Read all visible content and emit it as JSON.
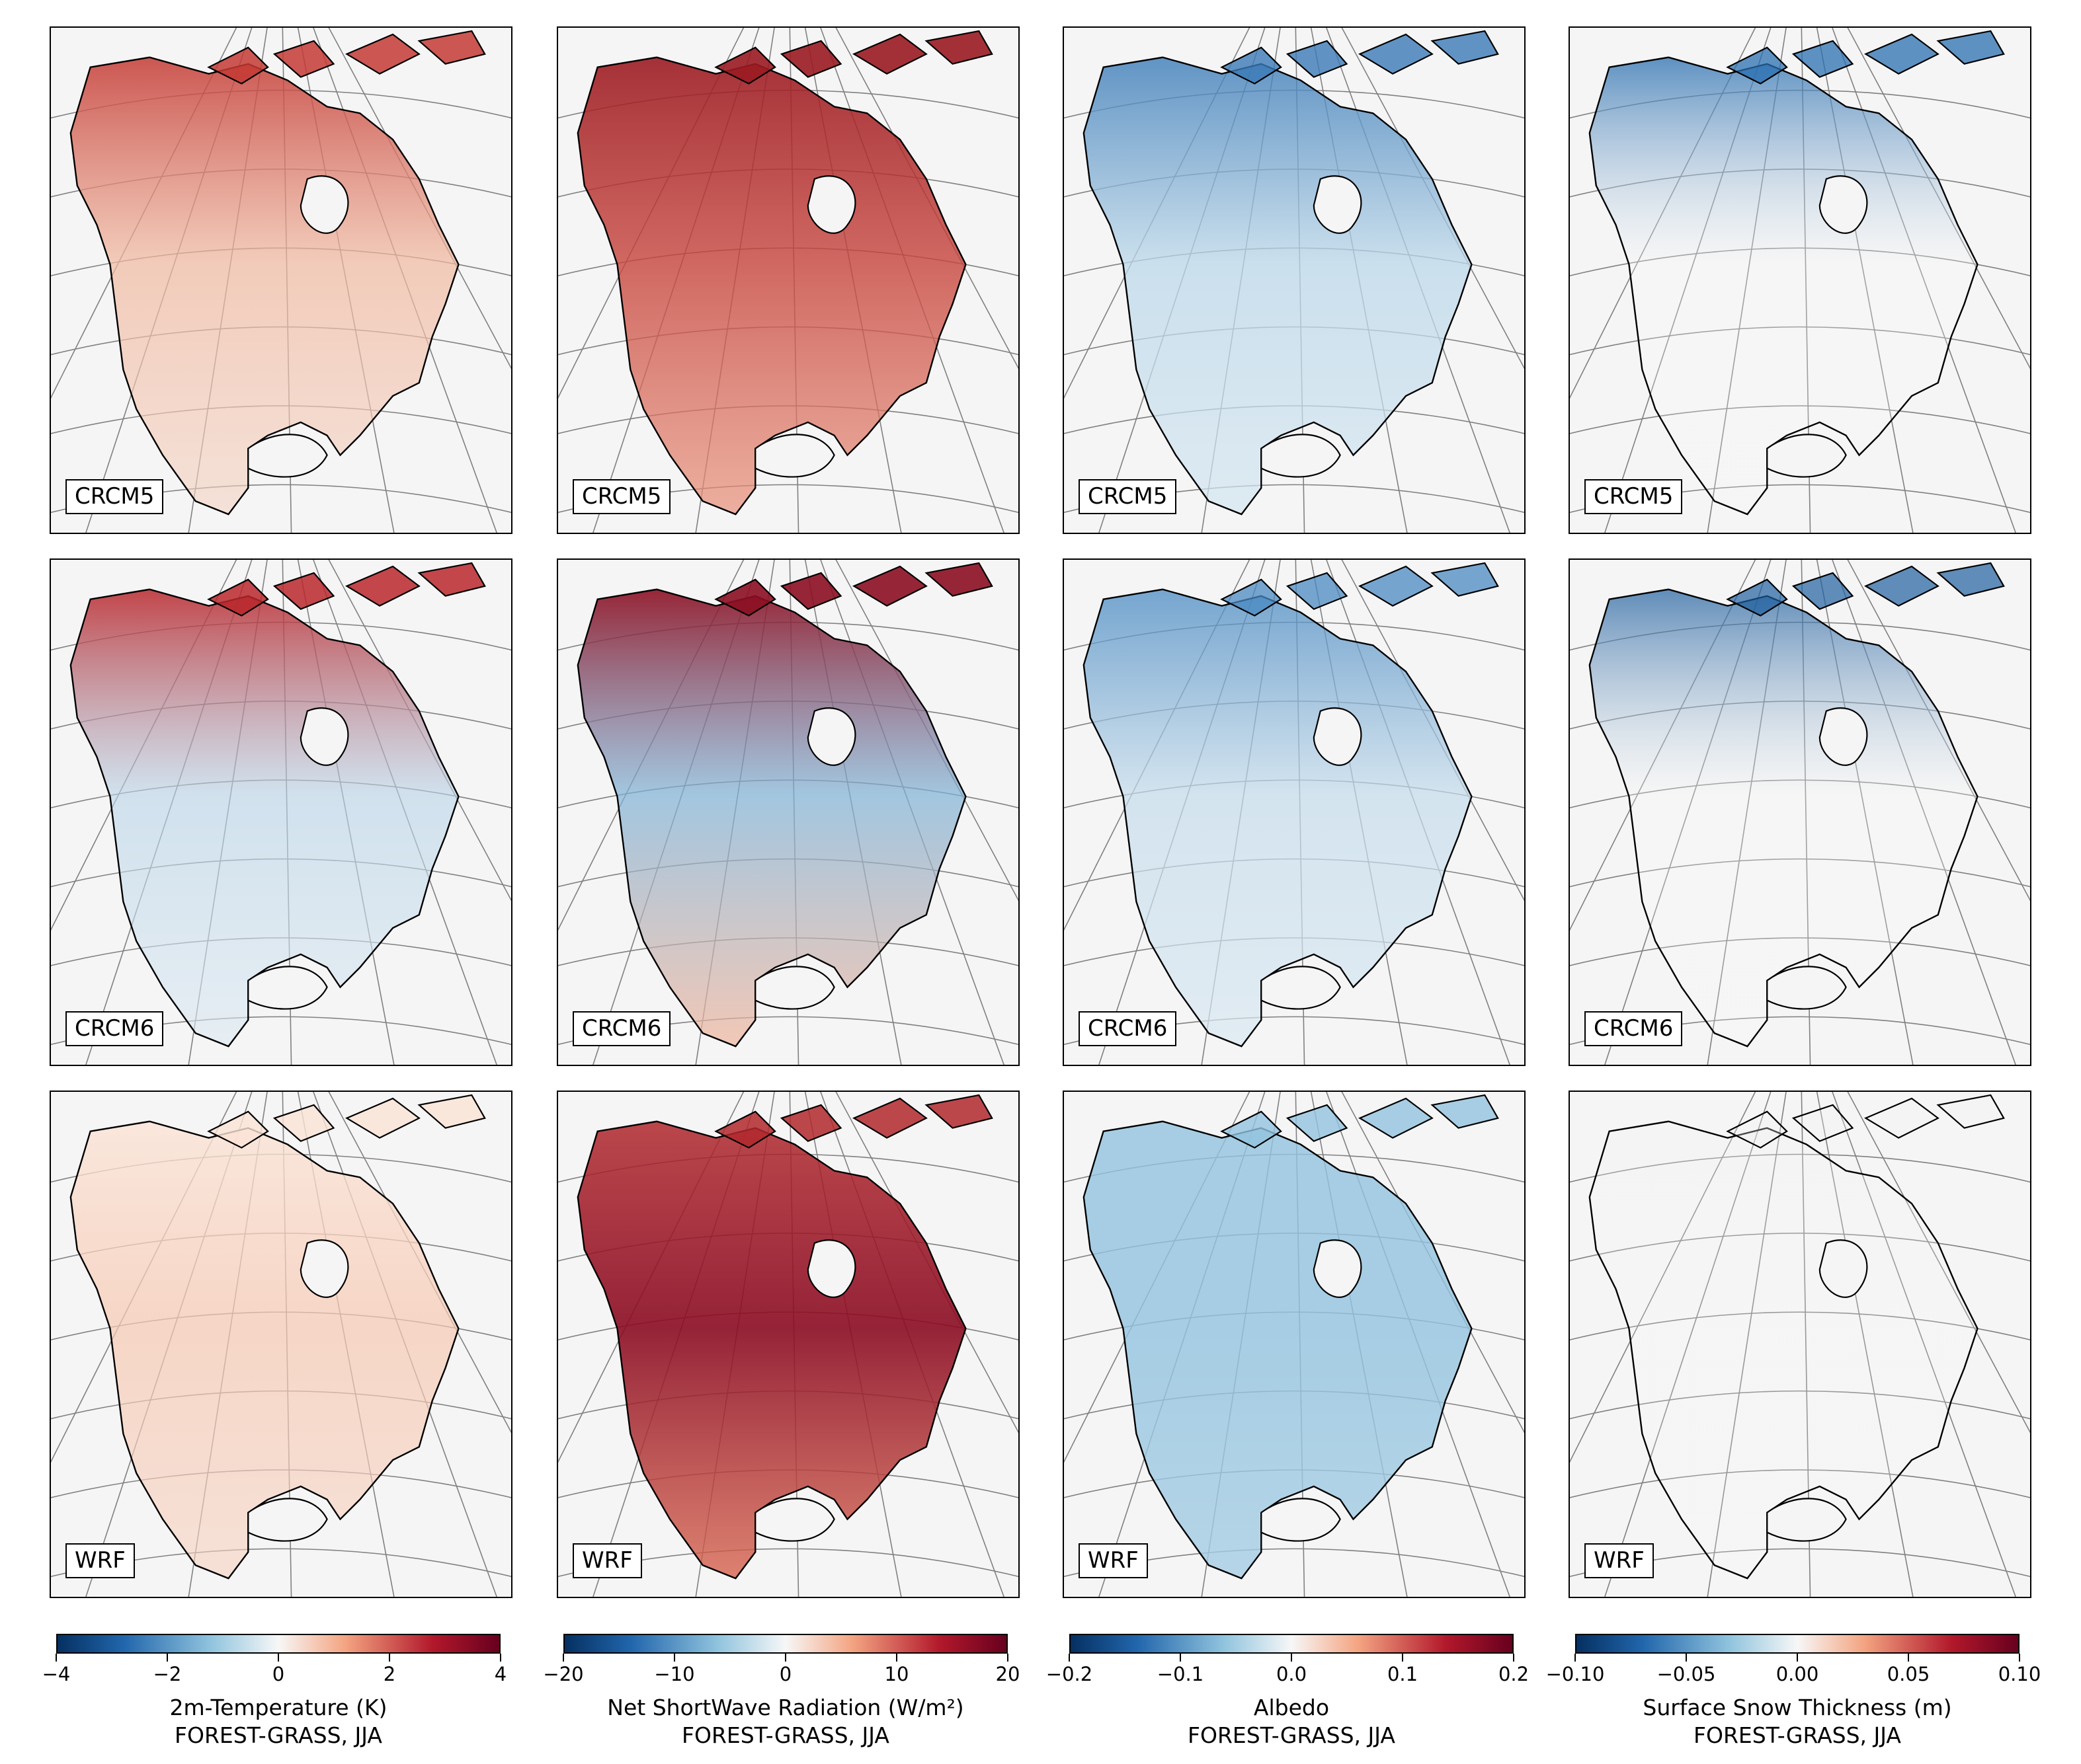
{
  "variables": [
    {
      "title": "2m-Temperature (K)",
      "subtitle": "FOREST-GRASS, JJA",
      "ticks": [
        "−4",
        "−2",
        "0",
        "2",
        "4"
      ],
      "tick_values": [
        -4,
        -2,
        0,
        2,
        4
      ],
      "range": [
        -4,
        4
      ]
    },
    {
      "title": "Net ShortWave Radiation (W/m²)",
      "subtitle": "FOREST-GRASS, JJA",
      "ticks": [
        "−20",
        "−10",
        "0",
        "10",
        "20"
      ],
      "tick_values": [
        -20,
        -10,
        0,
        10,
        20
      ],
      "range": [
        -20,
        20
      ]
    },
    {
      "title": "Albedo",
      "subtitle": "FOREST-GRASS, JJA",
      "ticks": [
        "−0.2",
        "−0.1",
        "0.0",
        "0.1",
        "0.2"
      ],
      "tick_values": [
        -0.2,
        -0.1,
        0.0,
        0.1,
        0.2
      ],
      "range": [
        -0.2,
        0.2
      ]
    },
    {
      "title": "Surface Snow Thickness (m)",
      "subtitle": "FOREST-GRASS, JJA",
      "ticks": [
        "−0.10",
        "−0.05",
        "0.00",
        "0.05",
        "0.10"
      ],
      "tick_values": [
        -0.1,
        -0.05,
        0.0,
        0.05,
        0.1
      ],
      "range": [
        -0.1,
        0.1
      ]
    }
  ],
  "models": [
    "CRCM5",
    "CRCM6",
    "WRF"
  ],
  "colormap": {
    "name": "RdBu_r",
    "low": "#053061",
    "mid": "#f7f7f7",
    "high": "#67001f"
  },
  "map_colors": {
    "background": "#f5f5f5",
    "coast": "#000000",
    "grid": "#808080"
  }
}
